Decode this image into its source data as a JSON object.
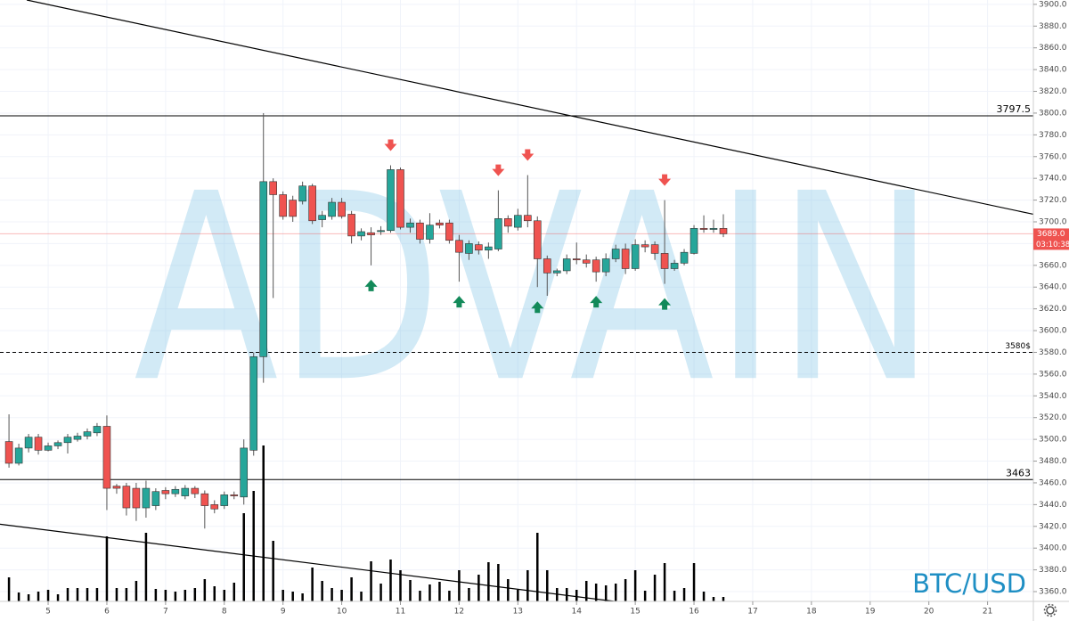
{
  "chart_data": {
    "type": "candlestick",
    "symbol": "BTC/USD",
    "watermark": "ADVAIN",
    "x": [
      4.333,
      4.5,
      4.667,
      4.833,
      5,
      5.167,
      5.333,
      5.5,
      5.667,
      5.833,
      6,
      6.167,
      6.333,
      6.5,
      6.667,
      6.833,
      7,
      7.167,
      7.333,
      7.5,
      7.667,
      7.833,
      8,
      8.167,
      8.333,
      8.5,
      8.667,
      8.833,
      9,
      9.167,
      9.333,
      9.5,
      9.667,
      9.833,
      10,
      10.167,
      10.333,
      10.5,
      10.667,
      10.833,
      11,
      11.167,
      11.333,
      11.5,
      11.667,
      11.833,
      12,
      12.167,
      12.333,
      12.5,
      12.667,
      12.833,
      13,
      13.167,
      13.333,
      13.5,
      13.667,
      13.833,
      14,
      14.167,
      14.333,
      14.5,
      14.667,
      14.833,
      15,
      15.167,
      15.333,
      15.5,
      15.667,
      15.833,
      16,
      16.167,
      16.333,
      16.5
    ],
    "open": [
      3498,
      3478,
      3492,
      3502,
      3490,
      3494,
      3497,
      3500,
      3503,
      3506,
      3512,
      3457,
      3457,
      3455,
      3437,
      3439,
      3453,
      3450,
      3448,
      3455,
      3450,
      3440,
      3439,
      3449,
      3447,
      3490,
      3576,
      3737,
      3725,
      3720,
      3719,
      3733,
      3702,
      3705,
      3718,
      3707,
      3687,
      3690,
      3691,
      3692,
      3748,
      3695,
      3699,
      3684,
      3699,
      3699,
      3683,
      3671,
      3679,
      3674,
      3675,
      3703,
      3695,
      3706,
      3701,
      3666,
      3653,
      3655,
      3666,
      3665,
      3665,
      3654,
      3666,
      3675,
      3657,
      3679,
      3679,
      3671,
      3657,
      3662,
      3671,
      3694,
      3693,
      3694
    ],
    "high": [
      3523,
      3496,
      3505,
      3505,
      3497,
      3499,
      3505,
      3506,
      3510,
      3515,
      3522,
      3459,
      3460,
      3460,
      3462,
      3455,
      3456,
      3457,
      3458,
      3457,
      3453,
      3444,
      3452,
      3452,
      3500,
      3580,
      3800,
      3740,
      3728,
      3724,
      3737,
      3735,
      3710,
      3722,
      3722,
      3710,
      3694,
      3695,
      3696,
      3752,
      3750,
      3703,
      3702,
      3708,
      3702,
      3702,
      3688,
      3683,
      3682,
      3681,
      3729,
      3706,
      3712,
      3743,
      3705,
      3669,
      3657,
      3670,
      3681,
      3670,
      3668,
      3671,
      3679,
      3680,
      3684,
      3683,
      3682,
      3720,
      3665,
      3675,
      3697,
      3706,
      3702,
      3707
    ],
    "low": [
      3474,
      3476,
      3488,
      3486,
      3489,
      3491,
      3487,
      3498,
      3500,
      3503,
      3435,
      3450,
      3430,
      3425,
      3428,
      3435,
      3445,
      3447,
      3445,
      3446,
      3418,
      3432,
      3436,
      3445,
      3440,
      3485,
      3552,
      3630,
      3702,
      3700,
      3716,
      3698,
      3695,
      3702,
      3703,
      3680,
      3683,
      3660,
      3688,
      3690,
      3693,
      3690,
      3680,
      3680,
      3694,
      3680,
      3645,
      3665,
      3670,
      3666,
      3673,
      3690,
      3692,
      3695,
      3640,
      3632,
      3650,
      3652,
      3661,
      3658,
      3645,
      3650,
      3663,
      3652,
      3655,
      3672,
      3665,
      3643,
      3655,
      3660,
      3670,
      3690,
      3690,
      3686
    ],
    "close": [
      3478,
      3492,
      3502,
      3490,
      3494,
      3497,
      3502,
      3503,
      3507,
      3512,
      3455,
      3455,
      3437,
      3437,
      3455,
      3452,
      3450,
      3454,
      3455,
      3450,
      3439,
      3436,
      3449,
      3448,
      3492,
      3576,
      3737,
      3725,
      3705,
      3705,
      3733,
      3701,
      3706,
      3718,
      3705,
      3687,
      3691,
      3688,
      3692,
      3748,
      3695,
      3699,
      3684,
      3697,
      3697,
      3683,
      3672,
      3680,
      3674,
      3677,
      3703,
      3696,
      3706,
      3701,
      3666,
      3653,
      3655,
      3666,
      3665,
      3662,
      3654,
      3666,
      3675,
      3657,
      3679,
      3677,
      3671,
      3657,
      3662,
      3672,
      3694,
      3693,
      3694,
      3689
    ],
    "volume": [
      27,
      10,
      8,
      11,
      13,
      8,
      15,
      15,
      15,
      15,
      73,
      15,
      15,
      23,
      77,
      14,
      13,
      11,
      13,
      15,
      25,
      17,
      13,
      21,
      99,
      124,
      175,
      68,
      13,
      11,
      9,
      38,
      23,
      15,
      13,
      27,
      11,
      45,
      20,
      47,
      35,
      24,
      12,
      19,
      22,
      12,
      35,
      15,
      30,
      44,
      42,
      25,
      13,
      35,
      77,
      35,
      15,
      15,
      13,
      23,
      20,
      18,
      20,
      25,
      35,
      12,
      30,
      43,
      12,
      15,
      43,
      11,
      5,
      5
    ],
    "up_color": "#26a69a",
    "down_color": "#ef5350",
    "signals_up": [
      10.5,
      12,
      13.333,
      14.333,
      15.5
    ],
    "signals_down": [
      10.833,
      12.667,
      13.167,
      15.5
    ],
    "levels": [
      {
        "value": 3797.5,
        "label": "3797.5",
        "style": "solid"
      },
      {
        "value": 3580,
        "label": "3580$",
        "style": "dashed"
      },
      {
        "value": 3463,
        "label": "3463",
        "style": "solid"
      }
    ],
    "trendlines": [
      {
        "x": [
          4.636,
          21.78
        ],
        "y": [
          3904,
          3707
        ]
      },
      {
        "x": [
          4.18,
          14.65
        ],
        "y": [
          3422,
          3351
        ]
      }
    ],
    "last_price": {
      "value": 3689,
      "label": "3689.0",
      "time": "03:10:38"
    },
    "xlim": [
      4.18,
      21.78
    ],
    "ylim": [
      3351,
      3904
    ],
    "xticks": [
      5,
      6,
      7,
      8,
      9,
      10,
      11,
      12,
      13,
      14,
      15,
      16,
      17,
      18,
      19,
      20,
      21
    ],
    "yticks": [
      {
        "value": 3360,
        "label": "3360.0"
      },
      {
        "value": 3380,
        "label": "3380.0"
      },
      {
        "value": 3400,
        "label": "3400.0"
      },
      {
        "value": 3420,
        "label": "3420.0"
      },
      {
        "value": 3440,
        "label": "3440.0"
      },
      {
        "value": 3460,
        "label": "3460.0"
      },
      {
        "value": 3480,
        "label": "3480.0"
      },
      {
        "value": 3500,
        "label": "3500.0"
      },
      {
        "value": 3520,
        "label": "3520.0"
      },
      {
        "value": 3540,
        "label": "3540.0"
      },
      {
        "value": 3560,
        "label": "3560.0"
      },
      {
        "value": 3580,
        "label": "3580.0"
      },
      {
        "value": 3600,
        "label": "3600.0"
      },
      {
        "value": 3620,
        "label": "3620.0"
      },
      {
        "value": 3640,
        "label": "3640.0"
      },
      {
        "value": 3660,
        "label": "3660.0"
      },
      {
        "value": 3680,
        "label": "3680.0"
      },
      {
        "value": 3700,
        "label": "3700.0"
      },
      {
        "value": 3720,
        "label": "3720.0"
      },
      {
        "value": 3740,
        "label": "3740.0"
      },
      {
        "value": 3760,
        "label": "3760.0"
      },
      {
        "value": 3780,
        "label": "3780.0"
      },
      {
        "value": 3800,
        "label": "3800.0"
      },
      {
        "value": 3820,
        "label": "3820.0"
      },
      {
        "value": 3840,
        "label": "3840.0"
      },
      {
        "value": 3860,
        "label": "3860.0"
      },
      {
        "value": 3880,
        "label": "3880.0"
      },
      {
        "value": 3900,
        "label": "3900.0"
      }
    ],
    "grid": true
  }
}
